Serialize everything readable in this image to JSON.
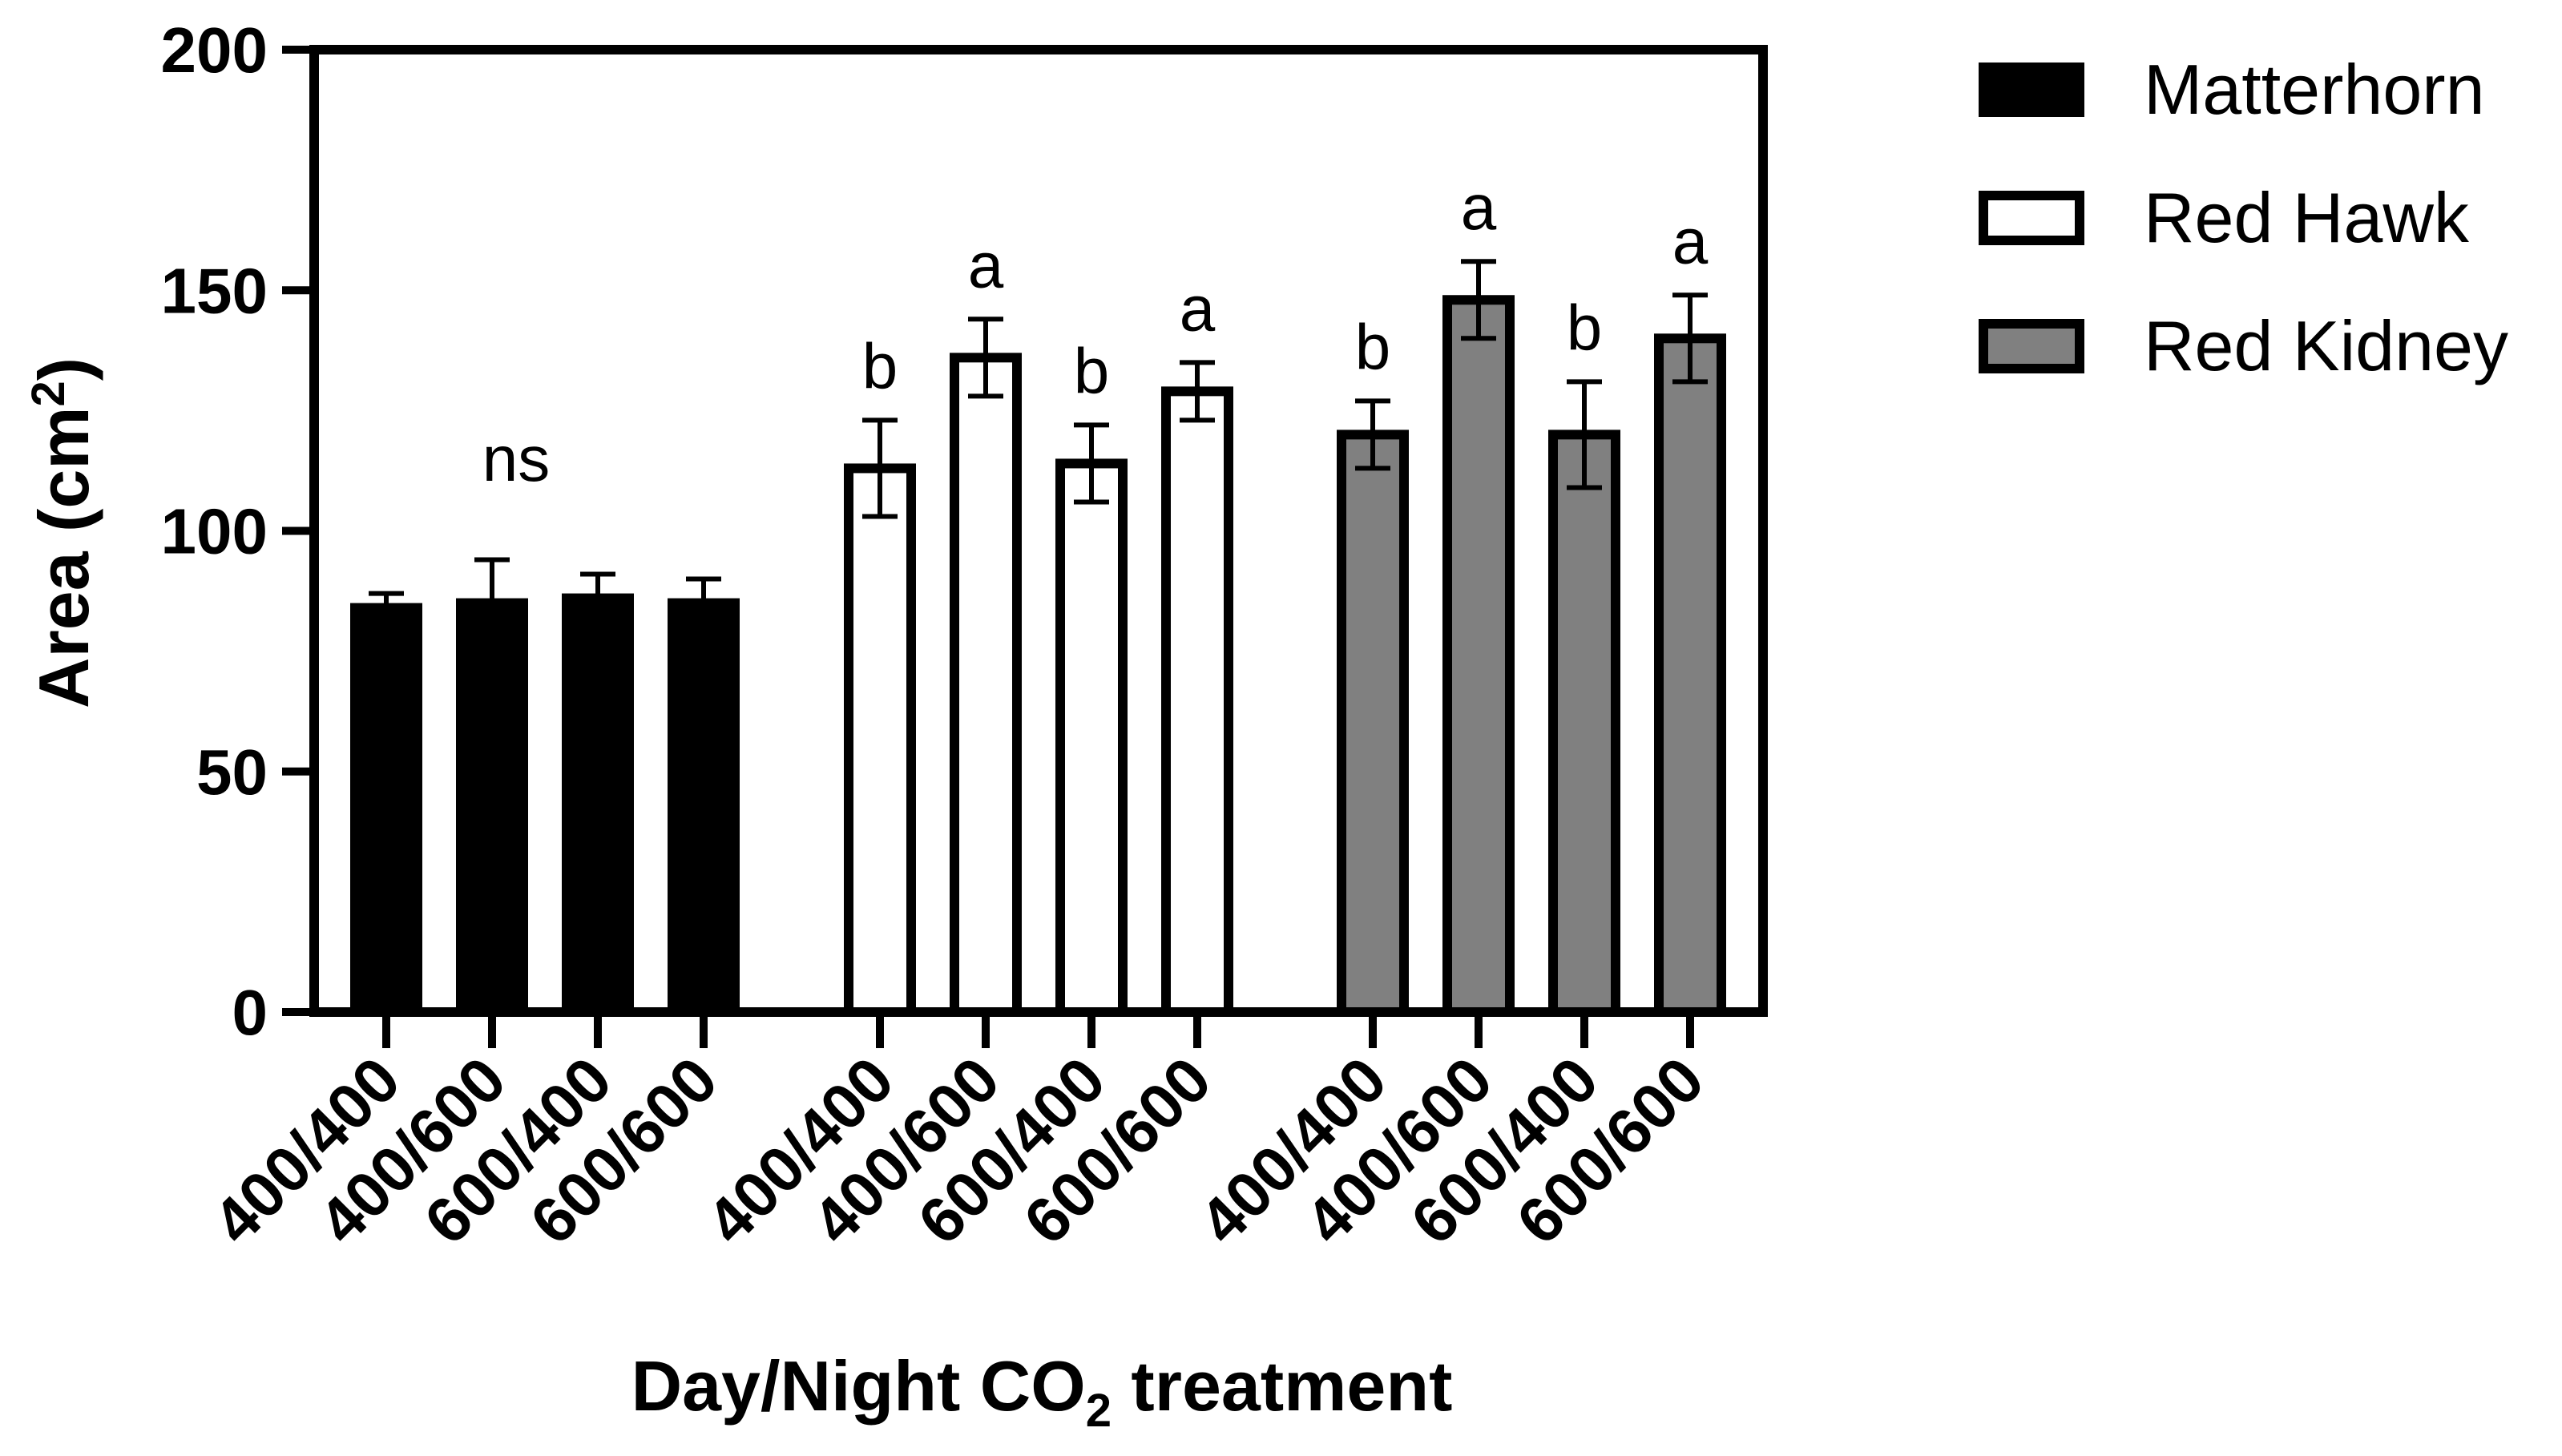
{
  "chart_data": {
    "type": "bar",
    "title": "",
    "xlabel": {
      "prefix": "Day/Night CO",
      "subscript": "2",
      "suffix": " treatment"
    },
    "ylabel": {
      "prefix": "Area (cm",
      "superscript": "2",
      "suffix": ")"
    },
    "ylim": [
      0,
      200
    ],
    "yticks": [
      "0",
      "50",
      "100",
      "150",
      "200"
    ],
    "colors": {
      "Matterhorn": "#000000",
      "Red Hawk": "#ffffff",
      "Red Kidney": "#808080",
      "stroke": "#000000"
    },
    "legend_position": "right",
    "groups": [
      {
        "name": "Matterhorn",
        "sig_group_label": "ns",
        "bars": [
          {
            "category": "400/400",
            "value": 84,
            "error": 3
          },
          {
            "category": "400/600",
            "value": 85,
            "error": 9
          },
          {
            "category": "600/400",
            "value": 86,
            "error": 5
          },
          {
            "category": "600/600",
            "value": 85,
            "error": 5
          }
        ]
      },
      {
        "name": "Red Hawk",
        "bars": [
          {
            "category": "400/400",
            "value": 113,
            "error": 10,
            "sig": "b"
          },
          {
            "category": "400/600",
            "value": 136,
            "error": 8,
            "sig": "a"
          },
          {
            "category": "600/400",
            "value": 114,
            "error": 8,
            "sig": "b"
          },
          {
            "category": "600/600",
            "value": 129,
            "error": 6,
            "sig": "a"
          }
        ]
      },
      {
        "name": "Red Kidney",
        "bars": [
          {
            "category": "400/400",
            "value": 120,
            "error": 7,
            "sig": "b"
          },
          {
            "category": "400/600",
            "value": 148,
            "error": 8,
            "sig": "a"
          },
          {
            "category": "600/400",
            "value": 120,
            "error": 11,
            "sig": "b"
          },
          {
            "category": "600/600",
            "value": 140,
            "error": 9,
            "sig": "a"
          }
        ]
      }
    ],
    "legend": [
      "Matterhorn",
      "Red Hawk",
      "Red Kidney"
    ]
  }
}
